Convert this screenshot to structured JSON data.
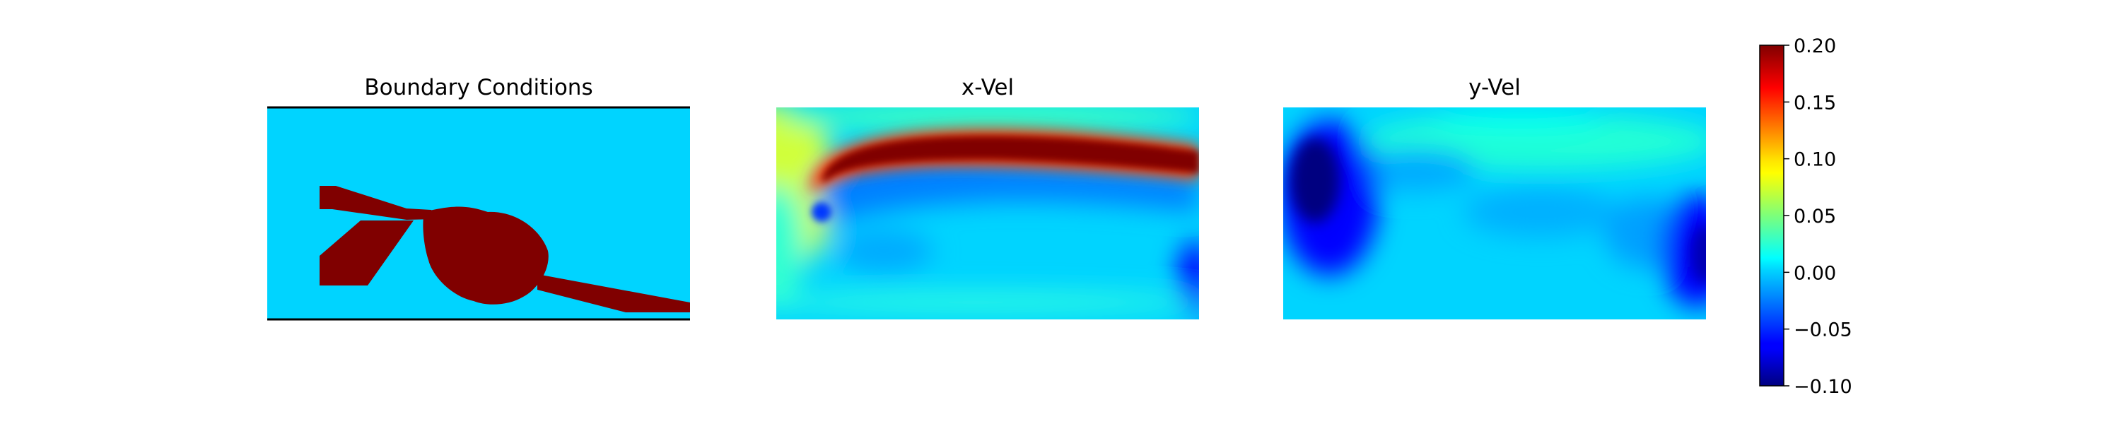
{
  "chart_data": [
    {
      "type": "heatmap",
      "title": "Boundary Conditions",
      "xlabel": "",
      "ylabel": "",
      "axes_visible": false,
      "colormap": "jet",
      "description_values": {
        "fluid": 0.0,
        "solid": 0.2
      },
      "colors": {
        "fluid": "#00d4ff",
        "solid": "#800000",
        "border": "#000000"
      }
    },
    {
      "type": "heatmap",
      "title": "x-Vel",
      "xlabel": "",
      "ylabel": "",
      "axes_visible": false,
      "colormap": "jet"
    },
    {
      "type": "heatmap",
      "title": "y-Vel",
      "xlabel": "",
      "ylabel": "",
      "axes_visible": false,
      "colormap": "jet"
    }
  ],
  "colorbar": {
    "colormap": "jet",
    "range": [
      -0.1,
      0.2
    ],
    "ticks": [
      {
        "value": 0.2,
        "label": "0.20"
      },
      {
        "value": 0.15,
        "label": "0.15"
      },
      {
        "value": 0.1,
        "label": "0.10"
      },
      {
        "value": 0.05,
        "label": "0.05"
      },
      {
        "value": 0.0,
        "label": "0.00"
      },
      {
        "value": -0.05,
        "label": "−0.05"
      },
      {
        "value": -0.1,
        "label": "−0.10"
      }
    ]
  }
}
